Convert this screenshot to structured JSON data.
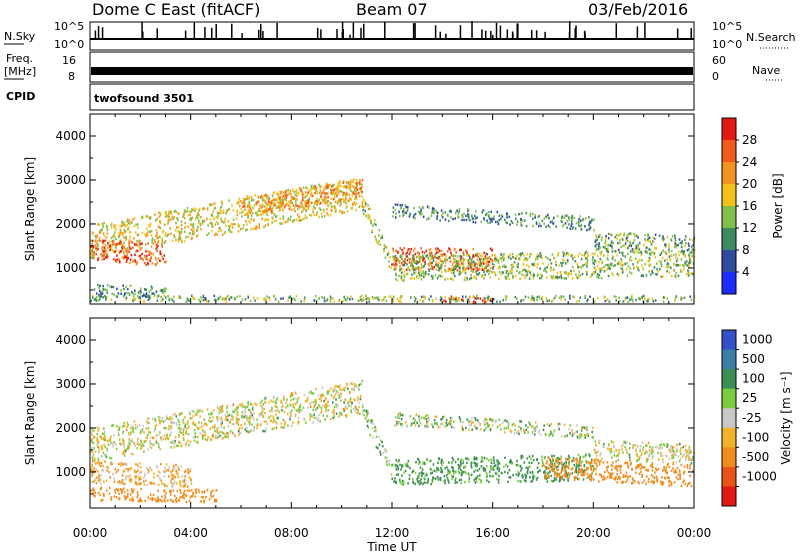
{
  "header": {
    "radar": "Dome C East (fitACF)",
    "beam": "Beam 07",
    "date": "03/Feb/2016"
  },
  "status_panels": {
    "nsky_label": "N.Sky",
    "nsky_ticks": [
      "10^5",
      "10^0"
    ],
    "nsearch_label": "N.Search",
    "freq_label_1": "Freq.",
    "freq_label_2": "[MHz]",
    "freq_ticks": [
      "16",
      "8"
    ],
    "nave_ticks": [
      "60",
      "0"
    ],
    "nave_label": "Nave",
    "cpid_label": "CPID",
    "cpid_value": "twofsound 3501"
  },
  "axes": {
    "ylabel": "Slant Range [km]",
    "yticks": [
      "1000",
      "2000",
      "3000",
      "4000"
    ],
    "xlabel": "Time UT",
    "xticks": [
      "00:00",
      "04:00",
      "08:00",
      "12:00",
      "16:00",
      "20:00",
      "00:00"
    ]
  },
  "power_scale": {
    "label": "Power [dB]",
    "ticks": [
      "4",
      "8",
      "12",
      "16",
      "20",
      "24",
      "28"
    ]
  },
  "velocity_scale": {
    "label": "Velocity [m s⁻¹]",
    "ticks": [
      "1000",
      "500",
      "100",
      "25",
      "-25",
      "-100",
      "-500",
      "-1000"
    ]
  },
  "colors": {
    "power": [
      "#1c2cff",
      "#2f4ca0",
      "#3c8a5e",
      "#7fbf4a",
      "#f2c21a",
      "#f39420",
      "#f05a1a",
      "#e41b12"
    ],
    "velocity": [
      "#3550c8",
      "#3a7fa8",
      "#3c8f54",
      "#7bcc3e",
      "#c8c8c8",
      "#f4b12a",
      "#f18b1c",
      "#ea5418",
      "#e31b12"
    ]
  },
  "chart_data": [
    {
      "type": "heatmap",
      "name": "power",
      "xlabel": "Time UT",
      "ylabel": "Slant Range [km]",
      "xlim": [
        0,
        24
      ],
      "ylim": [
        180,
        4500
      ],
      "colorbar": {
        "label": "Power [dB]",
        "range": [
          0,
          32
        ]
      },
      "regions": [
        {
          "t": [
            0,
            10.8
          ],
          "center": [
            1600,
            2700
          ],
          "width": 380,
          "value": 18
        },
        {
          "t": [
            0,
            3
          ],
          "center": [
            1400,
            1300
          ],
          "width": 260,
          "value": 26
        },
        {
          "t": [
            0,
            3
          ],
          "center": [
            500,
            450
          ],
          "width": 120,
          "value": 10
        },
        {
          "t": [
            6,
            10.8
          ],
          "center": [
            2400,
            2800
          ],
          "width": 220,
          "value": 22
        },
        {
          "t": [
            10.8,
            12
          ],
          "center": [
            2500,
            1000
          ],
          "width": 220,
          "value": 16
        },
        {
          "t": [
            12,
            16
          ],
          "center": [
            1200,
            1200
          ],
          "width": 260,
          "value": 26
        },
        {
          "t": [
            14,
            16
          ],
          "center": [
            280,
            280
          ],
          "width": 80,
          "value": 29
        },
        {
          "t": [
            12,
            24
          ],
          "center": [
            1000,
            1100
          ],
          "width": 300,
          "value": 14
        },
        {
          "t": [
            12,
            20
          ],
          "center": [
            2300,
            2000
          ],
          "width": 150,
          "value": 10
        },
        {
          "t": [
            20,
            24
          ],
          "center": [
            1600,
            1500
          ],
          "width": 220,
          "value": 12
        },
        {
          "t": [
            0,
            24
          ],
          "center": [
            300,
            300
          ],
          "width": 70,
          "value": 13
        }
      ]
    },
    {
      "type": "heatmap",
      "name": "velocity",
      "xlabel": "Time UT",
      "ylabel": "Slant Range [km]",
      "xlim": [
        0,
        24
      ],
      "ylim": [
        180,
        4500
      ],
      "colorbar": {
        "label": "Velocity [m s⁻¹]",
        "range": [
          -1000,
          1000
        ]
      },
      "regions": [
        {
          "t": [
            0,
            10.8
          ],
          "center": [
            1600,
            2700
          ],
          "width": 380,
          "value": 0
        },
        {
          "t": [
            0,
            4
          ],
          "center": [
            1000,
            900
          ],
          "width": 250,
          "value": -90
        },
        {
          "t": [
            0,
            5
          ],
          "center": [
            500,
            450
          ],
          "width": 150,
          "value": -300
        },
        {
          "t": [
            10.8,
            12
          ],
          "center": [
            2400,
            1000
          ],
          "width": 220,
          "value": 60
        },
        {
          "t": [
            12,
            20
          ],
          "center": [
            1000,
            1100
          ],
          "width": 300,
          "value": 150
        },
        {
          "t": [
            12,
            20
          ],
          "center": [
            2200,
            1900
          ],
          "width": 150,
          "value": 50
        },
        {
          "t": [
            18,
            24
          ],
          "center": [
            1100,
            900
          ],
          "width": 250,
          "value": -300
        },
        {
          "t": [
            20,
            24
          ],
          "center": [
            1500,
            1400
          ],
          "width": 220,
          "value": 0
        }
      ]
    }
  ]
}
